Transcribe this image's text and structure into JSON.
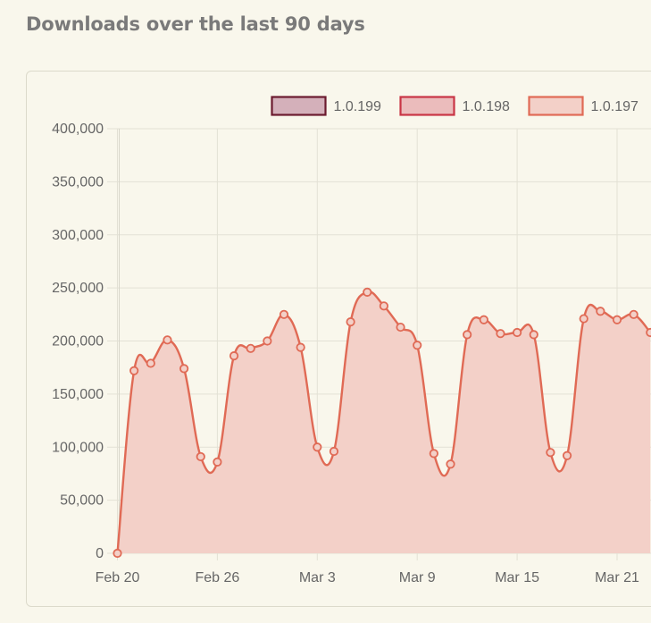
{
  "page": {
    "heading": "Downloads over the last 90 days"
  },
  "colors": {
    "background": "#f9f7ec",
    "grid": "#e3e1d5",
    "tick_text": "#666666",
    "series_1_0_199_fill": "#d4b0ba",
    "series_1_0_199_line": "#6b1a2e",
    "series_1_0_198_fill": "#ebbcbc",
    "series_1_0_198_line": "#c93545",
    "series_1_0_197_fill": "#f3d0c8",
    "series_1_0_197_line": "#e06a55"
  },
  "chart_data": {
    "type": "area",
    "title": "",
    "xlabel": "",
    "ylabel": "",
    "ylim": [
      0,
      400000
    ],
    "yticks": [
      0,
      50000,
      100000,
      150000,
      200000,
      250000,
      300000,
      350000,
      400000
    ],
    "ytick_labels": [
      "0",
      "50,000",
      "100,000",
      "150,000",
      "200,000",
      "250,000",
      "300,000",
      "350,000",
      "400,000"
    ],
    "xtick_labels": [
      "Feb 20",
      "Feb 26",
      "Mar 3",
      "Mar 9",
      "Mar 15",
      "Mar 21"
    ],
    "xtick_index": [
      0,
      6,
      12,
      18,
      24,
      30
    ],
    "grid": true,
    "legend_position": "top",
    "series": [
      {
        "name": "1.0.199",
        "fill": "#d4b0ba",
        "line": "#6b1a2e",
        "values": []
      },
      {
        "name": "1.0.198",
        "fill": "#ebbcbc",
        "line": "#c93545",
        "values": []
      },
      {
        "name": "1.0.197",
        "fill": "#f3d0c8",
        "line": "#e06a55",
        "values": [
          0,
          172000,
          179000,
          201000,
          174000,
          91000,
          86000,
          186000,
          193000,
          200000,
          225000,
          194000,
          100000,
          96000,
          218000,
          246000,
          233000,
          213000,
          196000,
          94000,
          84000,
          206000,
          220000,
          207000,
          208000,
          206000,
          95000,
          92000,
          221000,
          228000,
          220000,
          225000,
          208000
        ]
      }
    ]
  }
}
